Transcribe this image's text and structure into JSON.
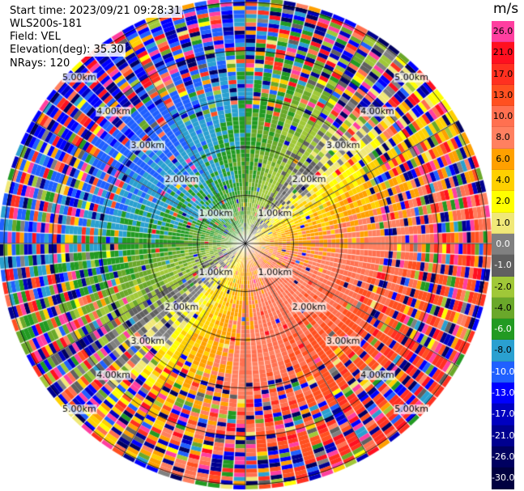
{
  "header": {
    "start_time": "Start time: 2023/09/21 09:28:31",
    "instrument": "WLS200s-181",
    "field": "Field: VEL",
    "elevation": "Elevation(deg): 35.30",
    "nrays": "NRays: 120"
  },
  "colorbar": {
    "unit": "m/s",
    "labels": [
      "26.0",
      "21.0",
      "17.0",
      "13.0",
      "10.0",
      "8.0",
      "6.0",
      "4.0",
      "2.0",
      "1.0",
      "0.0",
      "-1.0",
      "-2.0",
      "-4.0",
      "-6.0",
      "-8.0",
      "-10.0",
      "-13.0",
      "-17.0",
      "-21.0",
      "-26.0",
      "-30.0"
    ],
    "colors": [
      "#ff3fa0",
      "#ff1020",
      "#ff3020",
      "#ff5020",
      "#ff7050",
      "#ff8060",
      "#ffa000",
      "#ffd000",
      "#ffff00",
      "#f0e878",
      "#808080",
      "#606060",
      "#a0c838",
      "#6aa82a",
      "#229a22",
      "#2aa0d0",
      "#2060ff",
      "#0000ff",
      "#0000c0",
      "#000090",
      "#000060",
      "#000040"
    ]
  },
  "chart_data": {
    "type": "ppi",
    "field": "VEL",
    "units": "m/s",
    "n_rays": 120,
    "elevation_deg": 35.3,
    "range_rings_km": [
      1.0,
      2.0,
      3.0,
      4.0,
      5.0
    ],
    "ring_labels": [
      "1.00km",
      "2.00km",
      "3.00km",
      "4.00km",
      "5.00km"
    ],
    "max_range_km": 5.1,
    "value_range": [
      -30.0,
      26.0
    ],
    "pattern": "approaching (negative, green/blue) toward upper-left, receding (positive, yellow/orange/red) toward lower-right; noisy beyond ~3 km"
  }
}
